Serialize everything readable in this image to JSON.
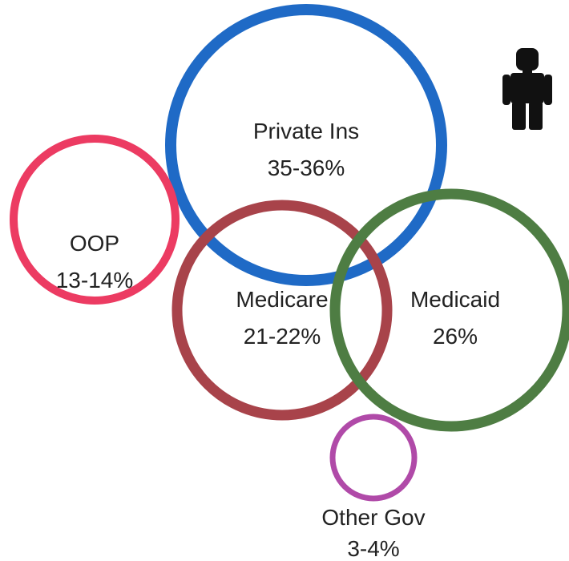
{
  "diagram": {
    "segments": [
      {
        "key": "private",
        "name": "Private Ins",
        "share": "35-36%",
        "color": "#1f6ac6"
      },
      {
        "key": "oop",
        "name": "OOP",
        "share": "13-14%",
        "color": "#ec3b62"
      },
      {
        "key": "medicare",
        "name": "Medicare",
        "share": "21-22%",
        "color": "#a8434a"
      },
      {
        "key": "medicaid",
        "name": "Medicaid",
        "share": "26%",
        "color": "#4e7d43"
      },
      {
        "key": "other",
        "name": "Other Gov",
        "share": "3-4%",
        "color": "#b04aa8"
      }
    ],
    "icon": {
      "name": "person-icon",
      "color": "#111111"
    }
  }
}
